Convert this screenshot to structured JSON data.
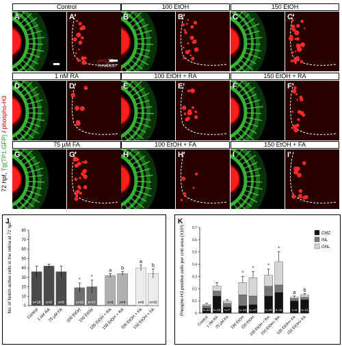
{
  "side_label": {
    "prefix": "72 hpf, ",
    "green_part": "Tg(TP1:GFP)",
    "sep": " / ",
    "red_part": "phospho-H3"
  },
  "headers": [
    "Control",
    "100 EtOH",
    "150 EtOH",
    "1 nM RA",
    "100 EtOH + RA",
    "150 EtOH + RA",
    "75 µM FA",
    "100 EtOH + FA",
    "150 EtOH + FA"
  ],
  "panels": [
    {
      "row": 0,
      "col": 0,
      "label": "A",
      "kind": "eye"
    },
    {
      "row": 0,
      "col": 0,
      "label": "A'",
      "kind": "red"
    },
    {
      "row": 0,
      "col": 1,
      "label": "B",
      "kind": "eye"
    },
    {
      "row": 0,
      "col": 1,
      "label": "B'",
      "kind": "red"
    },
    {
      "row": 0,
      "col": 2,
      "label": "C",
      "kind": "eye"
    },
    {
      "row": 0,
      "col": 2,
      "label": "C'",
      "kind": "red"
    },
    {
      "row": 1,
      "col": 0,
      "label": "D",
      "kind": "eye"
    },
    {
      "row": 1,
      "col": 0,
      "label": "D'",
      "kind": "red"
    },
    {
      "row": 1,
      "col": 1,
      "label": "E",
      "kind": "eye"
    },
    {
      "row": 1,
      "col": 1,
      "label": "E'",
      "kind": "red"
    },
    {
      "row": 1,
      "col": 2,
      "label": "F",
      "kind": "eye"
    },
    {
      "row": 1,
      "col": 2,
      "label": "F'",
      "kind": "red"
    },
    {
      "row": 2,
      "col": 0,
      "label": "G",
      "kind": "eye"
    },
    {
      "row": 2,
      "col": 0,
      "label": "G'",
      "kind": "red"
    },
    {
      "row": 2,
      "col": 1,
      "label": "H",
      "kind": "eye"
    },
    {
      "row": 2,
      "col": 1,
      "label": "H'",
      "kind": "red"
    },
    {
      "row": 2,
      "col": 2,
      "label": "I",
      "kind": "eye"
    },
    {
      "row": 2,
      "col": 2,
      "label": "I'",
      "kind": "red"
    }
  ],
  "render_note": {
    "red": "pH3",
    "rest": " 3D rendition"
  },
  "chart_data": [
    {
      "panel": "J",
      "type": "bar",
      "ylabel": "No. of Notch-active cells in the retina at 72 hpf",
      "ylim": [
        0,
        80
      ],
      "yticks": [
        0,
        10,
        20,
        30,
        40,
        50,
        60,
        70,
        80
      ],
      "categories": [
        "Control",
        "1 nM RA",
        "75 µM FA",
        "100 EtOH",
        "150 EtOH",
        "100 EtOH + RA",
        "150 EtOH + RA",
        "100 EtOH + FA",
        "150 EtOH + FA"
      ],
      "values": [
        36,
        42,
        36,
        19,
        20,
        32,
        34,
        40,
        34
      ],
      "errors": [
        6,
        2,
        6,
        5,
        7,
        2,
        2,
        3,
        5
      ],
      "colors": [
        "#4a4a4a",
        "#4a4a4a",
        "#4a4a4a",
        "#6e6e6e",
        "#6e6e6e",
        "#b0b0b0",
        "#b0b0b0",
        "#ececec",
        "#ececec"
      ],
      "n_labels": [
        "n=18",
        "n=3",
        "n=9",
        "n=16",
        "n=17",
        "n=3",
        "n=4",
        "n=9",
        "n=10"
      ],
      "sig": [
        "",
        "",
        "",
        "*",
        "*",
        "a",
        "b",
        "a",
        "b"
      ]
    },
    {
      "panel": "K",
      "type": "bar",
      "stacked": true,
      "ylabel": "Phospho-H3 positive cells per unit area (X10³)",
      "ylim": [
        0,
        0.7
      ],
      "yticks": [
        0,
        0.1,
        0.2,
        0.3,
        0.4,
        0.5,
        0.6,
        0.7
      ],
      "ytick_labels": [
        "0",
        "0.1",
        "0.2",
        "0.3",
        "0.4",
        "0.5",
        "0.6",
        "0.7"
      ],
      "categories": [
        "Control",
        "1 nM RA",
        "75 µM FA",
        "100 EtOH",
        "150 EtOH",
        "100 EtOH + RA",
        "150 EtOH+ RA",
        "100 EtOH+ FA",
        "150 EtOH+ FA"
      ],
      "series": [
        {
          "name": "CMZ",
          "color": "#111111",
          "values": [
            0.04,
            0.14,
            0.05,
            0.06,
            0.07,
            0.14,
            0.17,
            0.1,
            0.11
          ]
        },
        {
          "name": "INL",
          "color": "#777777",
          "values": [
            0.02,
            0.04,
            0.03,
            0.09,
            0.07,
            0.08,
            0.06,
            0.02,
            0.02
          ]
        },
        {
          "name": "ONL",
          "color": "#d6d6d6",
          "values": [
            0.01,
            0.04,
            0.02,
            0.1,
            0.15,
            0.09,
            0.19,
            0.01,
            0.02
          ]
        }
      ],
      "errors": [
        0.01,
        0.03,
        0.01,
        0.05,
        0.05,
        0.05,
        0.08,
        0.01,
        0.01
      ],
      "n_labels": [
        "n=12",
        "n=12",
        "n=7",
        "n=13",
        "n=17",
        "n=10",
        "n=11",
        "n=9",
        "n=11"
      ],
      "sig": [
        "",
        "",
        "",
        "*",
        "*",
        "*",
        "*",
        "a",
        "b"
      ],
      "legend_position": "top-right"
    }
  ],
  "colors": {
    "green": "#3fd13a",
    "red": "#ff2020",
    "dark_red": "#3a0000"
  }
}
